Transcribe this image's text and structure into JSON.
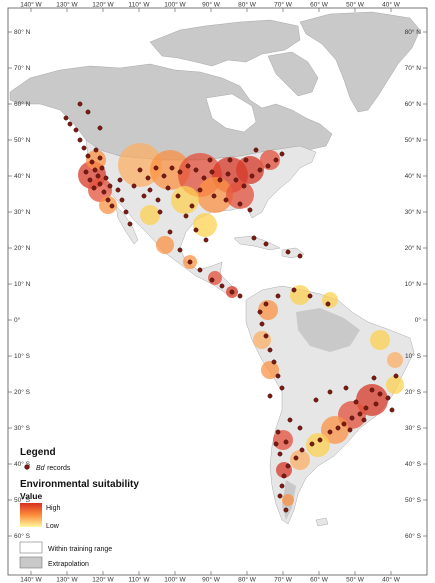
{
  "axes": {
    "top_longitudes": [
      "140° W",
      "130° W",
      "120° W",
      "110° W",
      "100° W",
      "90° W",
      "80° W",
      "70° W",
      "60° W",
      "50° W",
      "40° W"
    ],
    "bottom_longitudes": [
      "140° W",
      "130° W",
      "120° W",
      "110° W",
      "100° W",
      "90° W",
      "80° W",
      "70° W",
      "60° W",
      "50° W",
      "40° W"
    ],
    "latitudes": [
      "80° N",
      "70° N",
      "60° N",
      "50° N",
      "40° N",
      "30° N",
      "20° N",
      "10° N",
      "0°",
      "10° S",
      "20° S",
      "30° S",
      "40° S",
      "50° S",
      "60° S"
    ]
  },
  "legend": {
    "title": "Legend",
    "records_label": "records",
    "records_italic": "Bd",
    "suitability_title": "Environmental suitability",
    "value_label": "Value",
    "high_label": "High",
    "low_label": "Low",
    "within_label": "Within training range",
    "extrapolation_label": "Extrapolation"
  },
  "colors": {
    "extrapolation": "#c9c9c9",
    "within": "#e6e6e6",
    "ocean": "#ffffff",
    "high": "#d7301f",
    "mid": "#fc8d3c",
    "low": "#fff7a0",
    "record_dot": "#7a1a12"
  }
}
